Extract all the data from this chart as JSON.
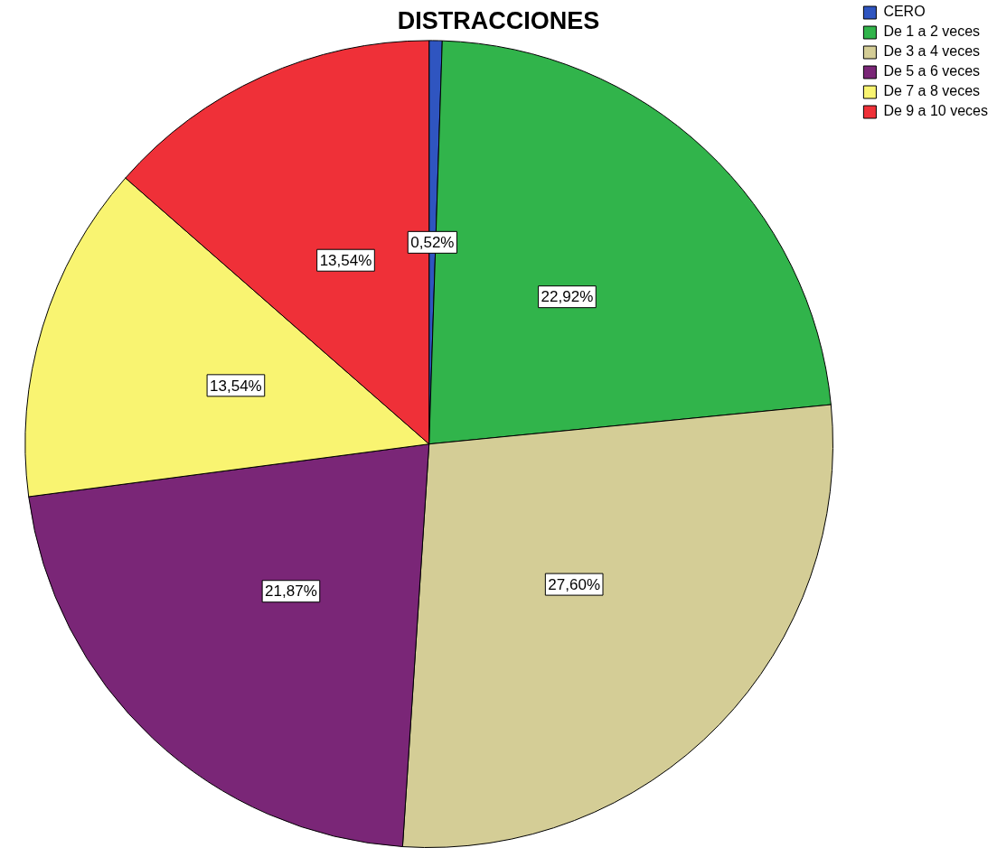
{
  "chart_data": {
    "type": "pie",
    "title": "DISTRACCIONES",
    "categories": [
      "CERO",
      "De 1 a 2 veces",
      "De 3 a 4 veces",
      "De 5 a 6 veces",
      "De 7 a 8 veces",
      "De 9 a 10 veces"
    ],
    "values": [
      0.52,
      22.92,
      27.6,
      21.87,
      13.54,
      13.54
    ],
    "value_labels": [
      "0,52%",
      "22,92%",
      "27,60%",
      "21,87%",
      "13,54%",
      "13,54%"
    ],
    "colors": [
      "#2f55c0",
      "#31b44b",
      "#d4cd96",
      "#7a2677",
      "#f9f471",
      "#ef3038"
    ],
    "legend": "top right"
  }
}
